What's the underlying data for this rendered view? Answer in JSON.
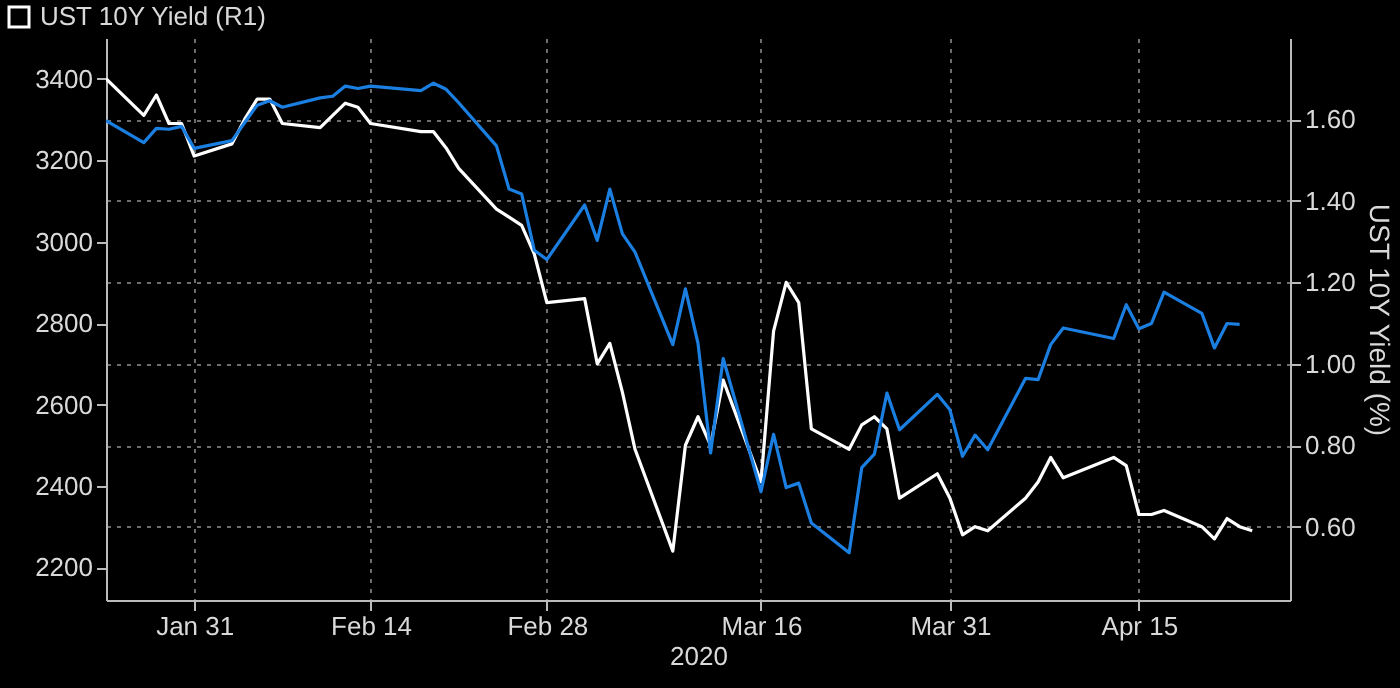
{
  "chart_data": {
    "type": "line",
    "xlabel": "2020",
    "y2label": "UST 10Y Yield (%)",
    "x": [
      "2020-01-24",
      "2020-01-27",
      "2020-01-28",
      "2020-01-29",
      "2020-01-30",
      "2020-01-31",
      "2020-02-03",
      "2020-02-04",
      "2020-02-05",
      "2020-02-06",
      "2020-02-07",
      "2020-02-10",
      "2020-02-11",
      "2020-02-12",
      "2020-02-13",
      "2020-02-14",
      "2020-02-18",
      "2020-02-19",
      "2020-02-20",
      "2020-02-21",
      "2020-02-24",
      "2020-02-25",
      "2020-02-26",
      "2020-02-27",
      "2020-02-28",
      "2020-03-02",
      "2020-03-03",
      "2020-03-04",
      "2020-03-05",
      "2020-03-06",
      "2020-03-09",
      "2020-03-10",
      "2020-03-11",
      "2020-03-12",
      "2020-03-13",
      "2020-03-16",
      "2020-03-17",
      "2020-03-18",
      "2020-03-19",
      "2020-03-20",
      "2020-03-23",
      "2020-03-24",
      "2020-03-25",
      "2020-03-26",
      "2020-03-27",
      "2020-03-30",
      "2020-03-31",
      "2020-04-01",
      "2020-04-02",
      "2020-04-03",
      "2020-04-06",
      "2020-04-07",
      "2020-04-08",
      "2020-04-09",
      "2020-04-13",
      "2020-04-14",
      "2020-04-15",
      "2020-04-16",
      "2020-04-17",
      "2020-04-20",
      "2020-04-21",
      "2020-04-22",
      "2020-04-23",
      "2020-04-24"
    ],
    "series": [
      {
        "name": "UST 10Y Yield (R1)",
        "color": "#ffffff",
        "axis": "y2",
        "values": [
          1.7,
          1.61,
          1.66,
          1.59,
          1.59,
          1.51,
          1.54,
          1.6,
          1.65,
          1.65,
          1.59,
          1.58,
          1.61,
          1.64,
          1.63,
          1.59,
          1.57,
          1.57,
          1.53,
          1.48,
          1.38,
          1.36,
          1.34,
          1.27,
          1.15,
          1.16,
          1.0,
          1.05,
          0.93,
          0.79,
          0.54,
          0.8,
          0.87,
          0.8,
          0.96,
          0.71,
          1.08,
          1.2,
          1.15,
          0.84,
          0.79,
          0.85,
          0.87,
          0.84,
          0.67,
          0.73,
          0.67,
          0.58,
          0.6,
          0.59,
          0.67,
          0.71,
          0.77,
          0.72,
          0.77,
          0.75,
          0.63,
          0.63,
          0.64,
          0.6,
          0.57,
          0.62,
          0.6,
          0.59
        ]
      },
      {
        "color": "#1a7fe0",
        "values": [
          3297,
          3243,
          3278,
          3276,
          3283,
          3229,
          3248,
          3292,
          3335,
          3346,
          3330,
          3353,
          3357,
          3382,
          3376,
          3382,
          3371,
          3389,
          3374,
          3341,
          3235,
          3129,
          3117,
          2979,
          2956,
          3090,
          3003,
          3129,
          3019,
          2974,
          2747,
          2884,
          2750,
          2481,
          2713,
          2386,
          2527,
          2396,
          2407,
          2309,
          2236,
          2445,
          2478,
          2628,
          2538,
          2625,
          2587,
          2473,
          2525,
          2489,
          2664,
          2661,
          2747,
          2788,
          2762,
          2845,
          2786,
          2799,
          2876,
          2824,
          2739,
          2799,
          2797,
          null
        ]
      }
    ],
    "xlim": [
      "2020-01-24",
      "2020-04-27"
    ],
    "xticks": [
      {
        "value": "2020-01-31",
        "label": "Jan 31"
      },
      {
        "value": "2020-02-14",
        "label": "Feb 14"
      },
      {
        "value": "2020-02-28",
        "label": "Feb 28"
      },
      {
        "value": "2020-03-16",
        "label": "Mar 16"
      },
      {
        "value": "2020-03-31",
        "label": "Mar 31"
      },
      {
        "value": "2020-04-15",
        "label": "Apr 15"
      }
    ],
    "ylim": [
      2120,
      3500
    ],
    "yticks": [
      2200,
      2400,
      2600,
      2800,
      3000,
      3200,
      3400
    ],
    "y2lim": [
      0.42,
      1.8
    ],
    "y2ticks": [
      {
        "value": 0.6,
        "label": "0.60"
      },
      {
        "value": 0.8,
        "label": "0.80"
      },
      {
        "value": 1.0,
        "label": "1.00"
      },
      {
        "value": 1.2,
        "label": "1.20"
      },
      {
        "value": 1.4,
        "label": "1.40"
      },
      {
        "value": 1.6,
        "label": "1.60"
      }
    ],
    "grid": true,
    "legend": "top left",
    "line_style": "solid",
    "marker": "none"
  }
}
